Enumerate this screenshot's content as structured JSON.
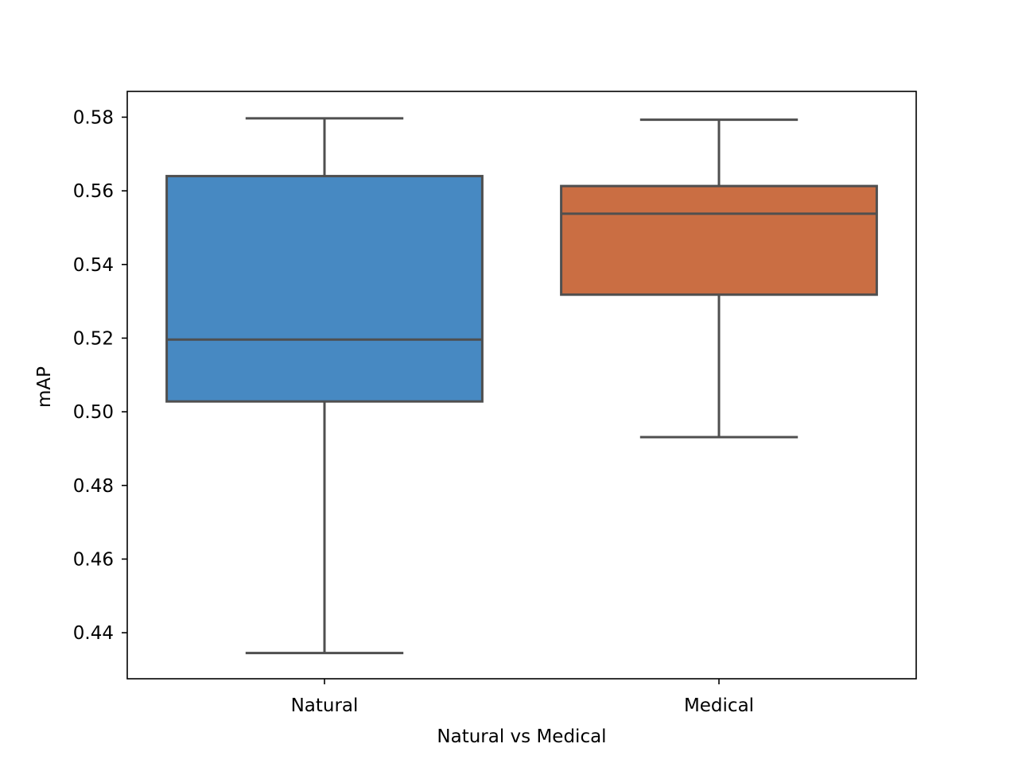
{
  "chart_data": {
    "type": "box",
    "title": "",
    "xlabel": "Natural vs Medical",
    "ylabel": "mAP",
    "categories": [
      "Natural",
      "Medical"
    ],
    "colors": [
      "#4789c2",
      "#ca6e43"
    ],
    "line_color": "#4f4f4f",
    "ylim": [
      0.4275,
      0.587
    ],
    "yticks": [
      0.44,
      0.46,
      0.48,
      0.5,
      0.52,
      0.54,
      0.56,
      0.58
    ],
    "ytick_labels": [
      "0.44",
      "0.46",
      "0.48",
      "0.50",
      "0.52",
      "0.54",
      "0.56",
      "0.58"
    ],
    "boxes": [
      {
        "category": "Natural",
        "whisker_low": 0.4345,
        "q1": 0.5028,
        "median": 0.5196,
        "q3": 0.564,
        "whisker_high": 0.5797
      },
      {
        "category": "Medical",
        "whisker_low": 0.4931,
        "q1": 0.5318,
        "median": 0.5538,
        "q3": 0.5613,
        "whisker_high": 0.5793
      }
    ],
    "grid": false,
    "legend": "none"
  }
}
